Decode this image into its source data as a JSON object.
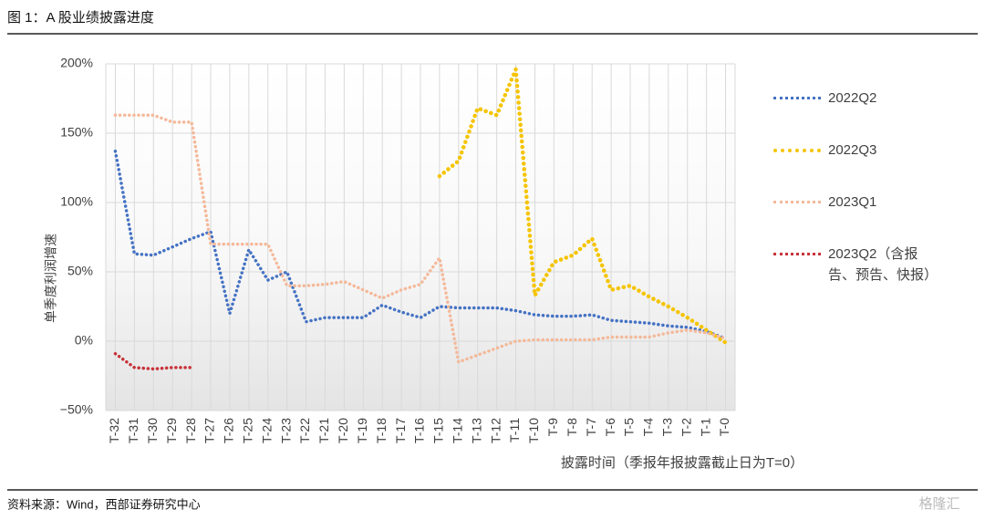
{
  "chart_data": {
    "type": "line",
    "title": "图 1：A 股业绩披露进度",
    "y_label": "单季度利润增速",
    "x_label": "披露时间（季报年报披露截止日为T=0）",
    "source": "资料来源：Wind，西部证券研究中心",
    "watermark": "格隆汇",
    "categories": [
      "T-32",
      "T-31",
      "T-30",
      "T-29",
      "T-28",
      "T-27",
      "T-26",
      "T-25",
      "T-24",
      "T-23",
      "T-22",
      "T-21",
      "T-20",
      "T-19",
      "T-18",
      "T-17",
      "T-16",
      "T-15",
      "T-14",
      "T-13",
      "T-12",
      "T-11",
      "T-10",
      "T-9",
      "T-8",
      "T-7",
      "T-6",
      "T-5",
      "T-4",
      "T-3",
      "T-2",
      "T-1",
      "T-0"
    ],
    "series": [
      {
        "name": "2022Q2",
        "color": "#4472c4",
        "values": [
          137,
          63,
          62,
          68,
          74,
          79,
          20,
          66,
          44,
          50,
          14,
          17,
          17,
          17,
          26,
          21,
          17,
          25,
          24,
          24,
          24,
          22,
          19,
          18,
          18,
          19,
          15,
          14,
          13,
          11,
          10,
          7,
          2
        ]
      },
      {
        "name": "2022Q3",
        "color": "#f5c400",
        "values": [
          null,
          null,
          null,
          null,
          null,
          null,
          null,
          null,
          null,
          null,
          null,
          null,
          null,
          null,
          null,
          null,
          null,
          119,
          130,
          168,
          163,
          196,
          33,
          57,
          62,
          74,
          37,
          40,
          32,
          25,
          17,
          8,
          -1
        ]
      },
      {
        "name": "2023Q1",
        "color": "#f4b99a",
        "values": [
          163,
          163,
          163,
          158,
          158,
          70,
          70,
          70,
          70,
          40,
          40,
          41,
          43,
          37,
          31,
          37,
          41,
          60,
          -15,
          -10,
          -5,
          0,
          1,
          1,
          1,
          1,
          3,
          3,
          3,
          6,
          8,
          6,
          2
        ]
      },
      {
        "name": "2023Q2（含报告、预告、快报）",
        "color": "#c8333a",
        "values": [
          -9,
          -19,
          -20,
          -19,
          -19,
          null,
          null,
          null,
          null,
          null,
          null,
          null,
          null,
          null,
          null,
          null,
          null,
          null,
          null,
          null,
          null,
          null,
          null,
          null,
          null,
          null,
          null,
          null,
          null,
          null,
          null,
          null,
          null
        ]
      }
    ],
    "ylim": [
      -50,
      200
    ],
    "yticks": [
      {
        "value": -50,
        "label": "−50%"
      },
      {
        "value": 0,
        "label": "0%"
      },
      {
        "value": 50,
        "label": "50%"
      },
      {
        "value": 100,
        "label": "100%"
      },
      {
        "value": 150,
        "label": "150%"
      },
      {
        "value": 200,
        "label": "200%"
      }
    ],
    "grid": true,
    "legend": "right"
  }
}
